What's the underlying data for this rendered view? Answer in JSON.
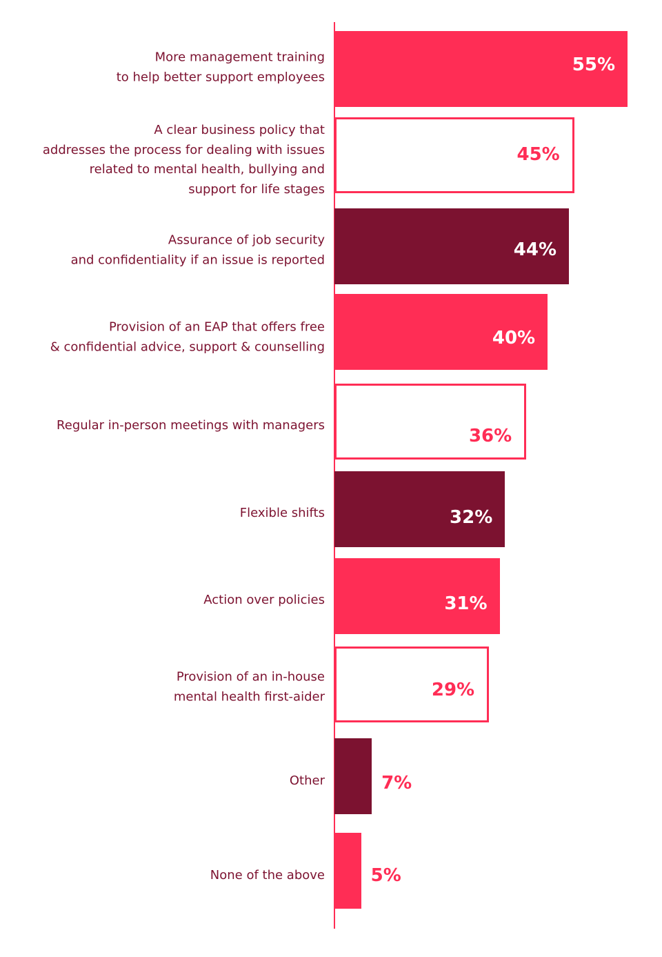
{
  "colors": {
    "pink": "#ff2d55",
    "maroon": "#7c1230",
    "white": "#ffffff",
    "label_text": "#7c1230"
  },
  "chart_data": {
    "type": "bar",
    "orientation": "horizontal",
    "title": "",
    "xlabel": "",
    "ylabel": "",
    "xlim": [
      0,
      55
    ],
    "grid": false,
    "unit": "%",
    "categories": [
      [
        "More management training",
        "to help better support employees"
      ],
      [
        "A clear business policy that",
        "addresses the process  for dealing with issues",
        "related to mental health, bullying and",
        "support for life stages"
      ],
      [
        "Assurance of job security",
        "and confidentiality if an issue is reported"
      ],
      [
        "Provision of an EAP that offers free",
        "& confidential advice, support & counselling"
      ],
      [
        "Regular in-person meetings with managers"
      ],
      [
        "Flexible shifts"
      ],
      [
        "Action over policies"
      ],
      [
        "Provision of an in-house",
        "mental health first-aider"
      ],
      [
        "Other"
      ],
      [
        "None of the above"
      ]
    ],
    "values": [
      55,
      45,
      44,
      40,
      36,
      32,
      31,
      29,
      7,
      5
    ],
    "value_labels": [
      "55%",
      "45%",
      "44%",
      "40%",
      "36%",
      "32%",
      "31%",
      "29%",
      "7%",
      "5%"
    ],
    "bar_styles": [
      "solid-pink",
      "outline",
      "solid-maroon",
      "solid-pink",
      "outline",
      "solid-maroon",
      "solid-pink",
      "outline",
      "solid-maroon",
      "solid-pink"
    ]
  }
}
